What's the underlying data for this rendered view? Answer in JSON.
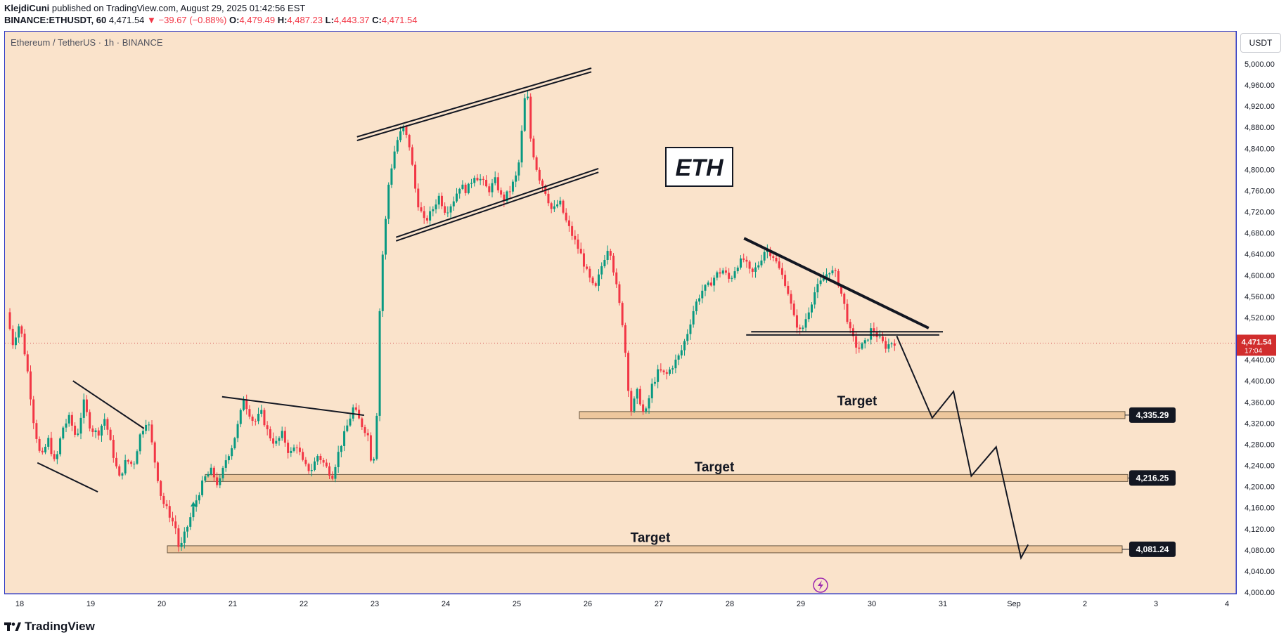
{
  "header": {
    "author": "KlejdiCuni",
    "published_text": "published on TradingView.com, August 29, 2025 01:42:56 EST",
    "symbol": "BINANCE:ETHUSDT, 60",
    "last": "4,471.54",
    "change": "▼ −39.67 (−0.88%)",
    "o_label": "O:",
    "o_value": "4,479.49",
    "h_label": "H:",
    "h_value": "4,487.23",
    "l_label": "L:",
    "l_value": "4,443.37",
    "c_label": "C:",
    "c_value": "4,471.54"
  },
  "pane_title": "Ethereum / TetherUS · 1h · BINANCE",
  "axis_unit": "USDT",
  "footer": {
    "brand": "TradingView"
  },
  "annotation": {
    "text": "ETH"
  },
  "current_price": {
    "value": "4,471.54",
    "countdown": "17:04"
  },
  "chart_data": {
    "type": "candlestick",
    "title": "Ethereum / TetherUS · 1h · BINANCE",
    "x_labels": [
      "18",
      "19",
      "20",
      "21",
      "22",
      "23",
      "24",
      "25",
      "26",
      "27",
      "28",
      "29",
      "30",
      "31",
      "Sep",
      "2",
      "3",
      "4"
    ],
    "y_ticks": [
      4000,
      4040,
      4080,
      4120,
      4160,
      4200,
      4240,
      4280,
      4320,
      4360,
      4400,
      4440,
      4480,
      4520,
      4560,
      4600,
      4640,
      4680,
      4720,
      4760,
      4800,
      4840,
      4880,
      4920,
      4960,
      5000
    ],
    "y_tick_labels": [
      "4,000.00",
      "4,040.00",
      "4,080.00",
      "4,120.00",
      "4,160.00",
      "4,200.00",
      "4,240.00",
      "4,280.00",
      "4,320.00",
      "4,360.00",
      "4,400.00",
      "4,440.00",
      "4,480.00",
      "4,520.00",
      "4,560.00",
      "4,600.00",
      "4,640.00",
      "4,680.00",
      "4,720.00",
      "4,760.00",
      "4,800.00",
      "4,840.00",
      "4,880.00",
      "4,920.00",
      "4,960.00",
      "5,000.00"
    ],
    "ylim": [
      3995,
      5020
    ],
    "xlim_days": [
      17.8,
      35.2
    ],
    "close_path": [
      [
        17.82,
        4530
      ],
      [
        17.9,
        4470
      ],
      [
        18.0,
        4510
      ],
      [
        18.1,
        4430
      ],
      [
        18.2,
        4320
      ],
      [
        18.3,
        4250
      ],
      [
        18.4,
        4290
      ],
      [
        18.5,
        4240
      ],
      [
        18.6,
        4310
      ],
      [
        18.7,
        4330
      ],
      [
        18.8,
        4290
      ],
      [
        18.9,
        4360
      ],
      [
        19.0,
        4310
      ],
      [
        19.1,
        4300
      ],
      [
        19.2,
        4330
      ],
      [
        19.3,
        4270
      ],
      [
        19.4,
        4215
      ],
      [
        19.5,
        4250
      ],
      [
        19.6,
        4240
      ],
      [
        19.7,
        4300
      ],
      [
        19.8,
        4330
      ],
      [
        19.9,
        4250
      ],
      [
        20.0,
        4175
      ],
      [
        20.1,
        4150
      ],
      [
        20.2,
        4120
      ],
      [
        20.25,
        4075
      ],
      [
        20.3,
        4100
      ],
      [
        20.4,
        4140
      ],
      [
        20.5,
        4180
      ],
      [
        20.6,
        4215
      ],
      [
        20.7,
        4230
      ],
      [
        20.8,
        4200
      ],
      [
        20.9,
        4250
      ],
      [
        21.0,
        4280
      ],
      [
        21.1,
        4330
      ],
      [
        21.15,
        4370
      ],
      [
        21.2,
        4350
      ],
      [
        21.3,
        4320
      ],
      [
        21.4,
        4340
      ],
      [
        21.5,
        4300
      ],
      [
        21.6,
        4280
      ],
      [
        21.7,
        4300
      ],
      [
        21.8,
        4260
      ],
      [
        21.9,
        4280
      ],
      [
        22.0,
        4240
      ],
      [
        22.1,
        4230
      ],
      [
        22.2,
        4260
      ],
      [
        22.3,
        4240
      ],
      [
        22.4,
        4220
      ],
      [
        22.5,
        4270
      ],
      [
        22.6,
        4310
      ],
      [
        22.7,
        4350
      ],
      [
        22.8,
        4320
      ],
      [
        22.9,
        4300
      ],
      [
        22.95,
        4250
      ],
      [
        23.0,
        4260
      ],
      [
        23.05,
        4400
      ],
      [
        23.08,
        4600
      ],
      [
        23.12,
        4650
      ],
      [
        23.2,
        4780
      ],
      [
        23.3,
        4850
      ],
      [
        23.4,
        4880
      ],
      [
        23.5,
        4840
      ],
      [
        23.55,
        4780
      ],
      [
        23.6,
        4740
      ],
      [
        23.7,
        4700
      ],
      [
        23.8,
        4720
      ],
      [
        23.9,
        4750
      ],
      [
        24.0,
        4720
      ],
      [
        24.1,
        4740
      ],
      [
        24.2,
        4770
      ],
      [
        24.3,
        4760
      ],
      [
        24.4,
        4790
      ],
      [
        24.5,
        4780
      ],
      [
        24.6,
        4760
      ],
      [
        24.7,
        4780
      ],
      [
        24.8,
        4740
      ],
      [
        24.9,
        4760
      ],
      [
        25.0,
        4790
      ],
      [
        25.05,
        4830
      ],
      [
        25.1,
        4930
      ],
      [
        25.15,
        4940
      ],
      [
        25.2,
        4850
      ],
      [
        25.3,
        4790
      ],
      [
        25.4,
        4760
      ],
      [
        25.5,
        4720
      ],
      [
        25.6,
        4740
      ],
      [
        25.7,
        4700
      ],
      [
        25.8,
        4670
      ],
      [
        25.9,
        4640
      ],
      [
        26.0,
        4600
      ],
      [
        26.1,
        4570
      ],
      [
        26.2,
        4620
      ],
      [
        26.3,
        4660
      ],
      [
        26.4,
        4580
      ],
      [
        26.5,
        4500
      ],
      [
        26.55,
        4420
      ],
      [
        26.6,
        4340
      ],
      [
        26.7,
        4380
      ],
      [
        26.8,
        4330
      ],
      [
        26.9,
        4390
      ],
      [
        27.0,
        4420
      ],
      [
        27.1,
        4410
      ],
      [
        27.2,
        4430
      ],
      [
        27.3,
        4450
      ],
      [
        27.4,
        4490
      ],
      [
        27.5,
        4540
      ],
      [
        27.6,
        4570
      ],
      [
        27.7,
        4580
      ],
      [
        27.8,
        4600
      ],
      [
        27.9,
        4610
      ],
      [
        28.0,
        4590
      ],
      [
        28.1,
        4620
      ],
      [
        28.2,
        4630
      ],
      [
        28.3,
        4600
      ],
      [
        28.4,
        4620
      ],
      [
        28.5,
        4650
      ],
      [
        28.6,
        4640
      ],
      [
        28.7,
        4610
      ],
      [
        28.8,
        4580
      ],
      [
        28.9,
        4520
      ],
      [
        29.0,
        4490
      ],
      [
        29.1,
        4530
      ],
      [
        29.2,
        4570
      ],
      [
        29.3,
        4590
      ],
      [
        29.4,
        4610
      ],
      [
        29.5,
        4600
      ],
      [
        29.6,
        4550
      ],
      [
        29.7,
        4490
      ],
      [
        29.8,
        4460
      ],
      [
        29.9,
        4470
      ],
      [
        30.0,
        4500
      ],
      [
        30.1,
        4480
      ],
      [
        30.2,
        4465
      ],
      [
        30.3,
        4475
      ],
      [
        30.35,
        4471.54
      ]
    ],
    "levels": [
      {
        "price": 4335.29,
        "label": "4,335.29",
        "annotation": "Target"
      },
      {
        "price": 4216.25,
        "label": "4,216.25",
        "annotation": "Target"
      },
      {
        "price": 4081.24,
        "label": "4,081.24",
        "annotation": "Target"
      }
    ],
    "current_price": 4471.54,
    "projection": [
      [
        30.35,
        4485
      ],
      [
        30.85,
        4330
      ],
      [
        31.15,
        4380
      ],
      [
        31.4,
        4220
      ],
      [
        31.75,
        4275
      ],
      [
        32.1,
        4065
      ],
      [
        32.2,
        4090
      ]
    ],
    "trendlines": [
      {
        "name": "flag-1-top",
        "points": [
          [
            18.75,
            4400
          ],
          [
            19.75,
            4310
          ]
        ]
      },
      {
        "name": "flag-1-bottom",
        "points": [
          [
            18.25,
            4245
          ],
          [
            19.1,
            4190
          ]
        ]
      },
      {
        "name": "rise-trendline",
        "points": [
          [
            20.85,
            4370
          ],
          [
            22.85,
            4335
          ]
        ]
      },
      {
        "name": "channel-top-1",
        "points": [
          [
            22.75,
            4855
          ],
          [
            26.05,
            4985
          ]
        ]
      },
      {
        "name": "channel-top-2",
        "points": [
          [
            22.75,
            4862
          ],
          [
            26.05,
            4992
          ]
        ]
      },
      {
        "name": "channel-bottom-1",
        "points": [
          [
            23.3,
            4665
          ],
          [
            26.15,
            4795
          ]
        ]
      },
      {
        "name": "channel-bottom-2",
        "points": [
          [
            23.3,
            4672
          ],
          [
            26.15,
            4802
          ]
        ]
      },
      {
        "name": "triangle-top",
        "points": [
          [
            28.2,
            4670
          ],
          [
            30.8,
            4500
          ]
        ]
      },
      {
        "name": "triangle-base-1",
        "points": [
          [
            28.3,
            4493
          ],
          [
            31.0,
            4493
          ]
        ]
      },
      {
        "name": "triangle-base-2",
        "points": [
          [
            28.23,
            4487
          ],
          [
            30.95,
            4487
          ]
        ]
      }
    ]
  }
}
